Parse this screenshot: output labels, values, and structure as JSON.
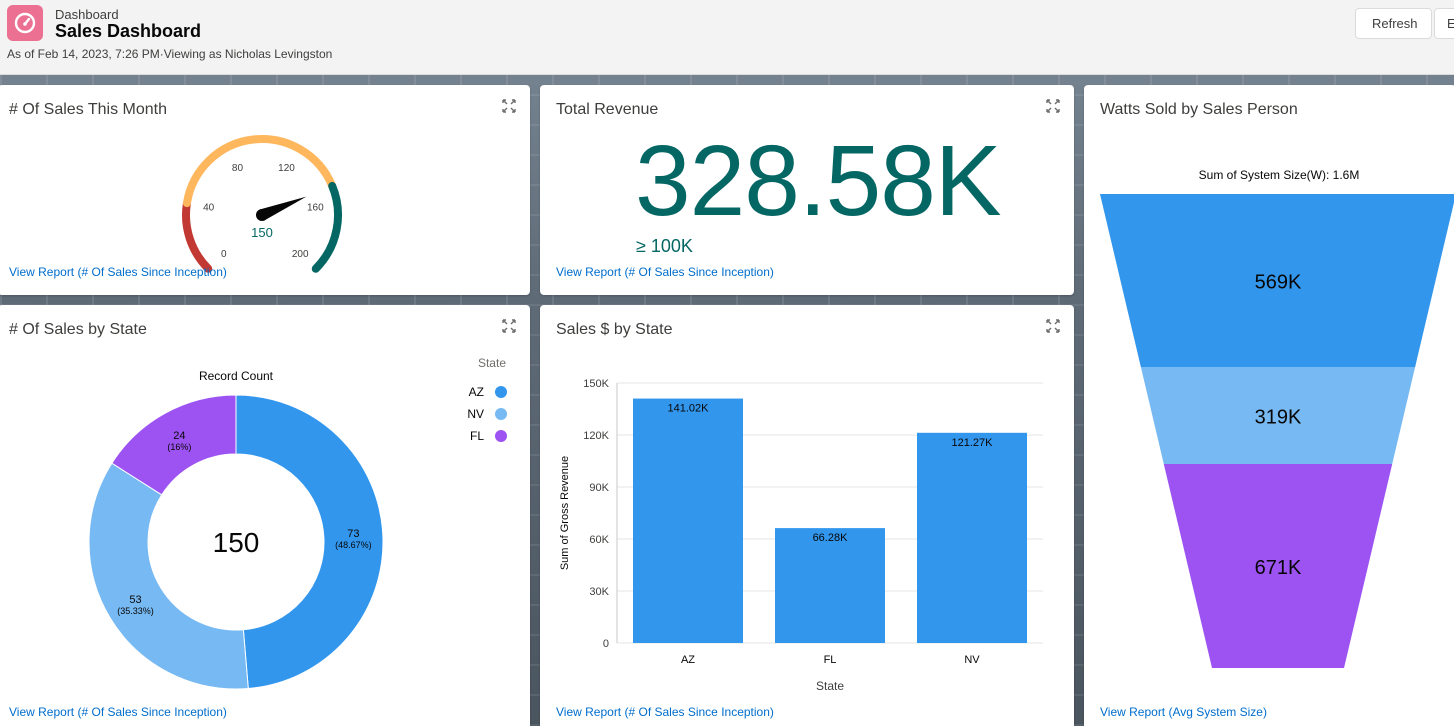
{
  "header": {
    "eyebrow": "Dashboard",
    "title": "Sales Dashboard",
    "subtitle": "As of Feb 14, 2023, 7:26 PM·Viewing as Nicholas Levingston",
    "refresh_label": "Refresh",
    "edit_label": "E"
  },
  "colors": {
    "accent_teal": "#056764",
    "bar_blue": "#3296ed",
    "light_blue": "#77b9f2",
    "purple": "#9d53f2",
    "gauge_red": "#c23934",
    "gauge_orange": "#ffb75d",
    "link": "#006dcc"
  },
  "cards": {
    "sales_month": {
      "title": "# Of Sales This Month",
      "link": "View Report (# Of Sales Since Inception)"
    },
    "revenue": {
      "title": "Total Revenue",
      "value": "328.58K",
      "target": "≥ 100K",
      "link": "View Report (# Of Sales Since Inception)"
    },
    "watts": {
      "title": "Watts Sold by Sales Person",
      "link": "View Report (Avg System Size)"
    },
    "state_count": {
      "title": "# Of Sales by State",
      "link": "View Report (# Of Sales Since Inception)"
    },
    "state_sales": {
      "title": "Sales $ by State",
      "link": "View Report (# Of Sales Since Inception)"
    }
  },
  "chart_data": [
    {
      "type": "gauge",
      "value": 150,
      "value_label": "150",
      "min": 0,
      "max": 200,
      "ticks": [
        0,
        40,
        80,
        120,
        160,
        200
      ],
      "tick_labels": [
        "0",
        "40",
        "80",
        "120",
        "160",
        "200"
      ],
      "bands": [
        {
          "from": 0,
          "to": 40,
          "color": "#c23934"
        },
        {
          "from": 40,
          "to": 150,
          "color": "#ffb75d"
        },
        {
          "from": 150,
          "to": 200,
          "color": "#056764"
        }
      ]
    },
    {
      "type": "pie",
      "title": "Record Count",
      "center_value": "150",
      "legend_title": "State",
      "legend_position": "top-right",
      "slices": [
        {
          "name": "AZ",
          "value": 73,
          "label": "73",
          "pct": "(48.67%)",
          "color": "#3296ed"
        },
        {
          "name": "NV",
          "value": 53,
          "label": "53",
          "pct": "(35.33%)",
          "color": "#77b9f2"
        },
        {
          "name": "FL",
          "value": 24,
          "label": "24",
          "pct": "(16%)",
          "color": "#9d53f2"
        }
      ]
    },
    {
      "type": "bar",
      "categories": [
        "AZ",
        "FL",
        "NV"
      ],
      "values": [
        141020,
        66280,
        121270
      ],
      "value_labels": [
        "141.02K",
        "66.28K",
        "121.27K"
      ],
      "xlabel": "State",
      "ylabel": "Sum of Gross Revenue",
      "ylim": [
        0,
        150000
      ],
      "yticks": [
        0,
        30000,
        60000,
        90000,
        120000,
        150000
      ],
      "ytick_labels": [
        "0",
        "30K",
        "60K",
        "90K",
        "120K",
        "150K"
      ],
      "grid": true
    },
    {
      "type": "funnel",
      "title": "Sum of System Size(W): 1.6M",
      "stages": [
        {
          "value": 569000,
          "label": "569K",
          "color": "#3296ed"
        },
        {
          "value": 319000,
          "label": "319K",
          "color": "#77b9f2"
        },
        {
          "value": 671000,
          "label": "671K",
          "color": "#9d53f2"
        }
      ]
    }
  ]
}
